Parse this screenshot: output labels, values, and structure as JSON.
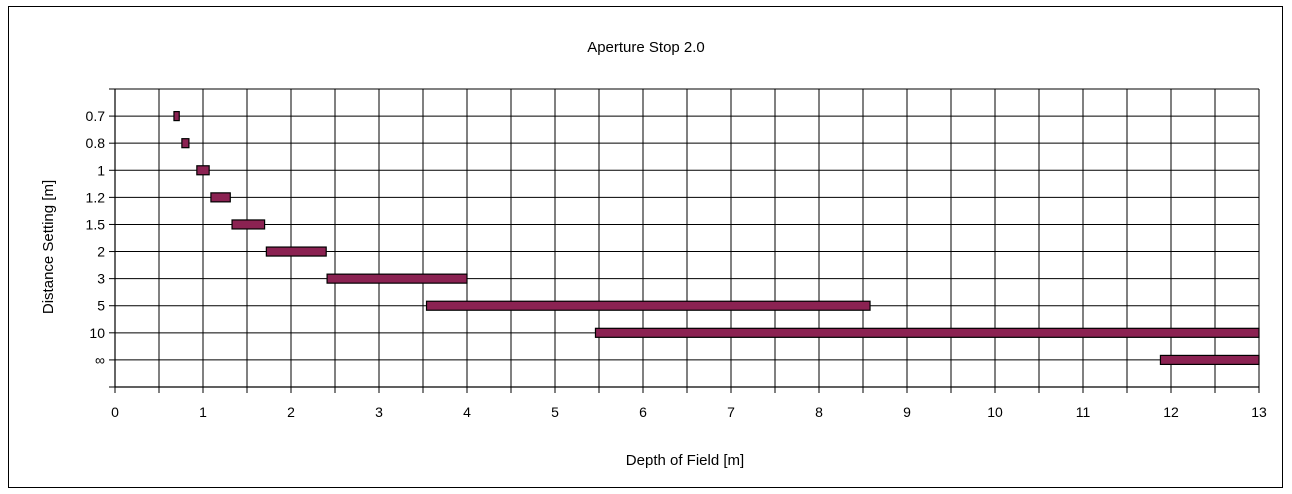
{
  "chart_data": {
    "type": "bar",
    "title": "Aperture Stop 2.0",
    "xlabel": "Depth of Field [m]",
    "ylabel": "Distance Setting [m]",
    "xlim": [
      0,
      13
    ],
    "x_ticks": [
      "0",
      "1",
      "2",
      "3",
      "4",
      "5",
      "6",
      "7",
      "8",
      "9",
      "10",
      "11",
      "12",
      "13"
    ],
    "x_minor_step": 0.5,
    "grid": true,
    "orientation": "horizontal-range",
    "bar_color": "#8b2252",
    "categories": [
      "0.7",
      "0.8",
      "1",
      "1.2",
      "1.5",
      "2",
      "3",
      "5",
      "10",
      "∞"
    ],
    "ranges": [
      [
        0.67,
        0.73
      ],
      [
        0.76,
        0.84
      ],
      [
        0.93,
        1.07
      ],
      [
        1.09,
        1.31
      ],
      [
        1.33,
        1.7
      ],
      [
        1.72,
        2.4
      ],
      [
        2.41,
        4.0
      ],
      [
        3.54,
        8.58
      ],
      [
        5.46,
        13.0
      ],
      [
        11.88,
        13.0
      ]
    ]
  }
}
